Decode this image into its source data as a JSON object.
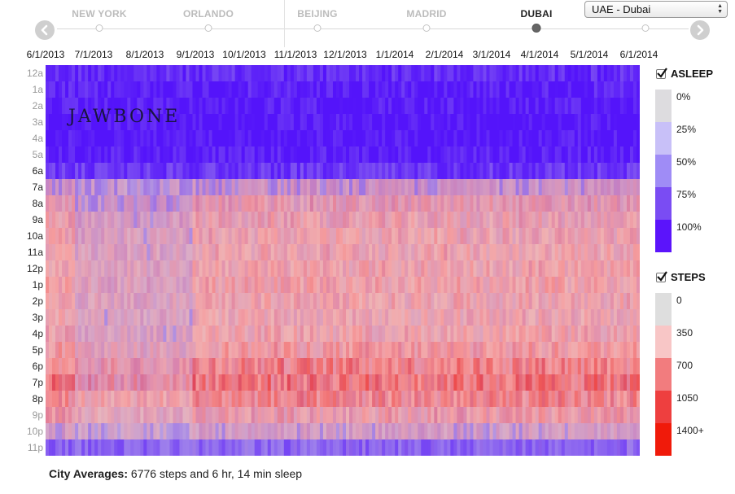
{
  "nav": {
    "cities": [
      {
        "name": "NEW YORK",
        "active": false
      },
      {
        "name": "ORLANDO",
        "active": false
      },
      {
        "name": "BEIJING",
        "active": false
      },
      {
        "name": "MADRID",
        "active": false
      },
      {
        "name": "DUBAI",
        "active": true
      },
      {
        "name": "",
        "active": false
      }
    ],
    "select_value": "UAE - Dubai"
  },
  "chart_data": {
    "type": "heatmap",
    "title": "",
    "xlabel": "",
    "ylabel": "",
    "x_tick_labels": [
      "6/1/2013",
      "7/1/2013",
      "8/1/2013",
      "9/1/2013",
      "10/1/2013",
      "11/1/2013",
      "12/1/2013",
      "1/1/2014",
      "2/1/2014",
      "3/1/2014",
      "4/1/2014",
      "5/1/2014",
      "6/1/2014"
    ],
    "y_tick_labels": [
      "12a",
      "1a",
      "2a",
      "3a",
      "4a",
      "5a",
      "6a",
      "7a",
      "8a",
      "9a",
      "10a",
      "11a",
      "12p",
      "1p",
      "2p",
      "3p",
      "4p",
      "5p",
      "6p",
      "7p",
      "8p",
      "9p",
      "10p",
      "11p"
    ],
    "y_ticks_highlighted": [
      "6a",
      "7a",
      "8a",
      "9a",
      "10a",
      "11a",
      "12p",
      "1p",
      "2p",
      "3p",
      "4p",
      "5p",
      "6p",
      "7p",
      "8p"
    ],
    "x_range": [
      "6/1/2013",
      "6/15/2014"
    ],
    "hourly_asleep_fraction": [
      0.84,
      0.9,
      0.93,
      0.95,
      0.95,
      0.92,
      0.78,
      0.4,
      0.22,
      0.14,
      0.1,
      0.08,
      0.06,
      0.06,
      0.07,
      0.09,
      0.07,
      0.05,
      0.04,
      0.04,
      0.06,
      0.14,
      0.32,
      0.58
    ],
    "hourly_steps": [
      20,
      10,
      5,
      5,
      5,
      10,
      60,
      330,
      430,
      420,
      420,
      420,
      430,
      440,
      420,
      400,
      420,
      480,
      600,
      650,
      560,
      450,
      300,
      120
    ],
    "legends": {
      "asleep": {
        "title": "ASLEEP",
        "checked": true,
        "stops": [
          {
            "label": "0%",
            "color": "#dddcdf"
          },
          {
            "label": "25%",
            "color": "#c8c0f8"
          },
          {
            "label": "50%",
            "color": "#9f8cf6"
          },
          {
            "label": "75%",
            "color": "#7a4cf3"
          },
          {
            "label": "100%",
            "color": "#5b14fb"
          }
        ]
      },
      "steps": {
        "title": "STEPS",
        "checked": true,
        "stops": [
          {
            "label": "0",
            "color": "#dedede"
          },
          {
            "label": "350",
            "color": "#f8c6c6"
          },
          {
            "label": "700",
            "color": "#f27c7e"
          },
          {
            "label": "1050",
            "color": "#ee3f3f"
          },
          {
            "label": "1400+",
            "color": "#f01a0a"
          }
        ]
      }
    },
    "watermark": "JAWBONE"
  },
  "footer": {
    "label": "City Averages:",
    "text": " 6776 steps and 6 hr, 14 min sleep"
  }
}
